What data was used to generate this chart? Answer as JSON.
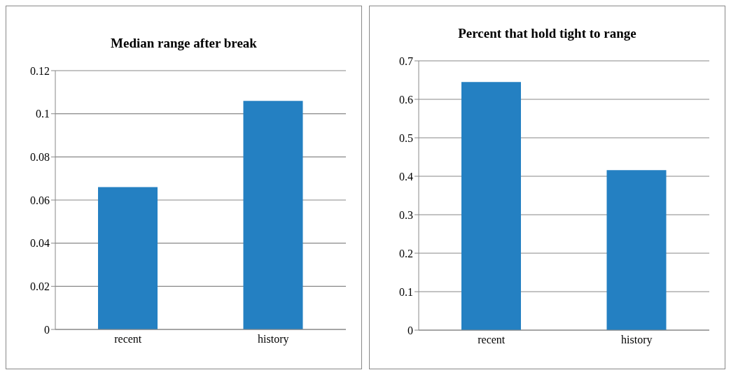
{
  "chart_data": [
    {
      "type": "bar",
      "title": "Median range after break",
      "categories": [
        "recent",
        "history"
      ],
      "values": [
        0.066,
        0.106
      ],
      "color": "#2480c2",
      "ylim": [
        0,
        0.12
      ],
      "yticks": [
        0,
        0.02,
        0.04,
        0.06,
        0.08,
        0.1,
        0.12
      ],
      "grid": "y",
      "legend": false
    },
    {
      "type": "bar",
      "title": "Percent that hold tight to range",
      "categories": [
        "recent",
        "history"
      ],
      "values": [
        0.645,
        0.416
      ],
      "color": "#2480c2",
      "ylim": [
        0,
        0.7
      ],
      "yticks": [
        0,
        0.1,
        0.2,
        0.3,
        0.4,
        0.5,
        0.6,
        0.7
      ],
      "grid": "y",
      "legend": false
    }
  ]
}
